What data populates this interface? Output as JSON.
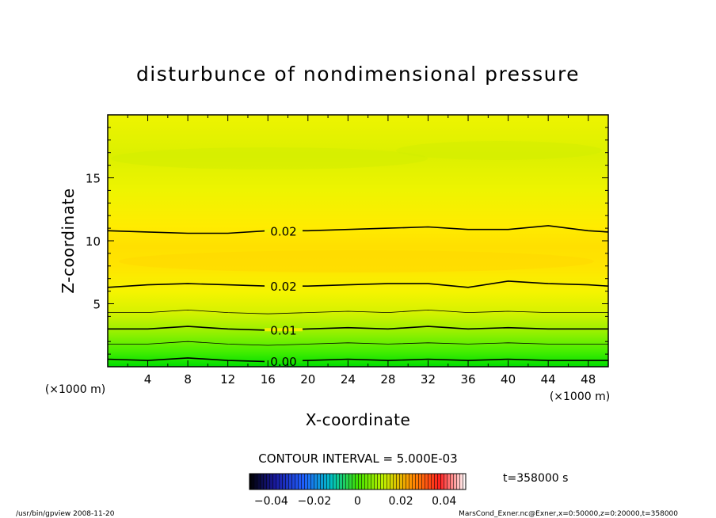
{
  "chart_data": {
    "type": "contour",
    "title": "disturbunce of nondimensional pressure",
    "xlabel": "X-coordinate",
    "ylabel": "Z-coordinate",
    "x_unit": "(×1000 m)",
    "x_unit_left": "(×1000 m)",
    "xlim": [
      0,
      50
    ],
    "ylim": [
      0,
      20
    ],
    "x_ticks": [
      4,
      8,
      12,
      16,
      20,
      24,
      28,
      32,
      36,
      40,
      44,
      48
    ],
    "y_ticks": [
      5,
      10,
      15
    ],
    "contour_interval_label": "CONTOUR INTERVAL = 5.000E-03",
    "time_label": "t=358000 s",
    "colorbar": {
      "range": [
        -0.05,
        0.05
      ],
      "tick_values": [
        -0.04,
        -0.02,
        0,
        0.02,
        0.04
      ],
      "tick_labels": [
        "−0.04",
        "−0.02",
        "0",
        "0.02",
        "0.04"
      ]
    },
    "contours": [
      {
        "level": 0.0,
        "label": "0.00",
        "major": true,
        "x": [
          0,
          4,
          8,
          12,
          16,
          20,
          24,
          28,
          32,
          36,
          40,
          44,
          48,
          50
        ],
        "y": [
          0.6,
          0.5,
          0.7,
          0.5,
          0.4,
          0.5,
          0.6,
          0.5,
          0.6,
          0.5,
          0.6,
          0.5,
          0.5,
          0.5
        ]
      },
      {
        "level": 0.005,
        "label": "",
        "major": false,
        "x": [
          0,
          4,
          8,
          12,
          16,
          20,
          24,
          28,
          32,
          36,
          40,
          44,
          48,
          50
        ],
        "y": [
          1.8,
          1.8,
          2.0,
          1.8,
          1.7,
          1.8,
          1.9,
          1.8,
          1.9,
          1.8,
          1.9,
          1.8,
          1.8,
          1.8
        ]
      },
      {
        "level": 0.01,
        "label": "0.01",
        "major": true,
        "x": [
          0,
          4,
          8,
          12,
          16,
          20,
          24,
          28,
          32,
          36,
          40,
          44,
          48,
          50
        ],
        "y": [
          3.0,
          3.0,
          3.2,
          3.0,
          2.9,
          3.0,
          3.1,
          3.0,
          3.2,
          3.0,
          3.1,
          3.0,
          3.0,
          3.0
        ]
      },
      {
        "level": 0.015,
        "label": "",
        "major": false,
        "x": [
          0,
          4,
          8,
          12,
          16,
          20,
          24,
          28,
          32,
          36,
          40,
          44,
          48,
          50
        ],
        "y": [
          4.3,
          4.3,
          4.5,
          4.3,
          4.2,
          4.3,
          4.4,
          4.3,
          4.5,
          4.3,
          4.4,
          4.3,
          4.3,
          4.3
        ]
      },
      {
        "level": 0.02,
        "label": "0.02",
        "major": true,
        "x": [
          0,
          4,
          8,
          12,
          16,
          20,
          24,
          28,
          32,
          36,
          40,
          44,
          48,
          50
        ],
        "y": [
          6.3,
          6.5,
          6.6,
          6.5,
          6.4,
          6.4,
          6.5,
          6.6,
          6.6,
          6.3,
          6.8,
          6.6,
          6.5,
          6.4
        ]
      },
      {
        "level": 0.02,
        "label": "0.02",
        "major": true,
        "x": [
          0,
          4,
          8,
          12,
          16,
          20,
          24,
          28,
          32,
          36,
          40,
          44,
          48,
          50
        ],
        "y": [
          10.8,
          10.7,
          10.6,
          10.6,
          10.8,
          10.8,
          10.9,
          11.0,
          11.1,
          10.9,
          10.9,
          11.2,
          10.8,
          10.7
        ]
      }
    ]
  },
  "footer": {
    "left": "/usr/bin/gpview   2008-11-20",
    "right": "MarsCond_Exner.nc@Exner,x=0:50000,z=0:20000,t=358000"
  }
}
